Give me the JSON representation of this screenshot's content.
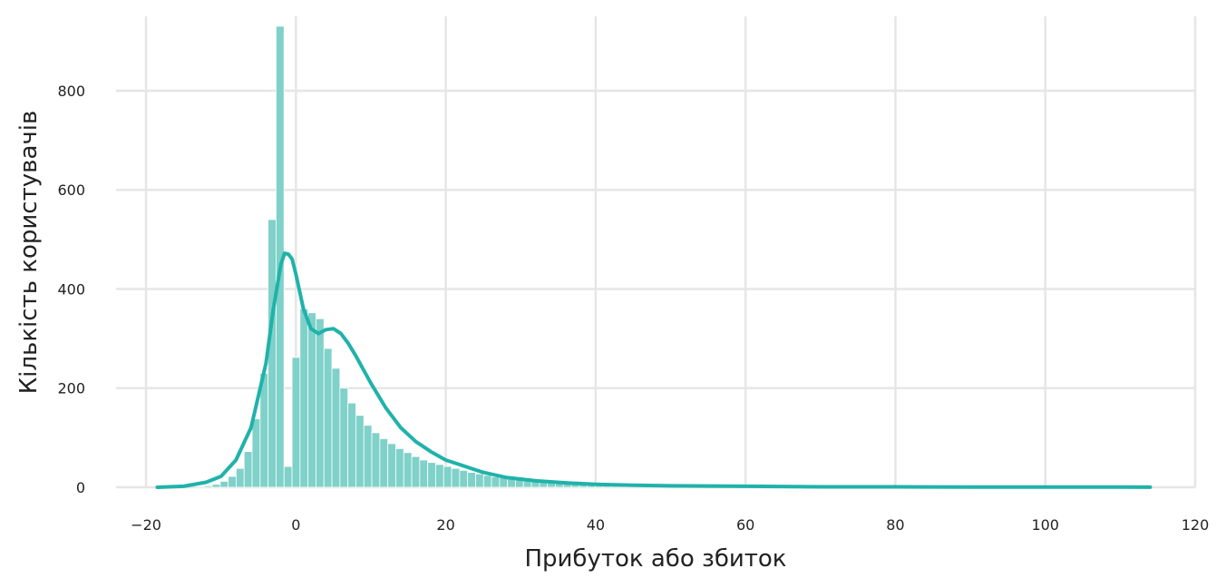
{
  "chart_data": {
    "type": "histogram",
    "xlabel": "Прибуток або збиток",
    "ylabel": "Кількість користувачів",
    "xlim": [
      -24,
      120
    ],
    "ylim": [
      0,
      950
    ],
    "x_ticks": [
      -20,
      0,
      20,
      40,
      60,
      80,
      100,
      120
    ],
    "x_tick_labels": [
      "−20",
      "0",
      "20",
      "40",
      "60",
      "80",
      "100",
      "120"
    ],
    "y_ticks": [
      0,
      200,
      400,
      600,
      800
    ],
    "y_tick_labels": [
      "0",
      "200",
      "400",
      "600",
      "800"
    ],
    "grid": true,
    "colors": {
      "bars": "#7fd1c9",
      "kde": "#20b2aa",
      "grid": "#e6e6e6"
    },
    "bins": {
      "start": -13.3,
      "width": 1.065,
      "counts": [
        2,
        3,
        6,
        12,
        22,
        38,
        72,
        138,
        230,
        540,
        930,
        42,
        262,
        360,
        352,
        340,
        280,
        240,
        200,
        170,
        145,
        125,
        110,
        98,
        88,
        78,
        70,
        62,
        55,
        50,
        46,
        42,
        38,
        34,
        30,
        27,
        24,
        21,
        19,
        17,
        15,
        13,
        12,
        11,
        10,
        9,
        8,
        7,
        6,
        6,
        5,
        5,
        4,
        4,
        3,
        3,
        3,
        2,
        2,
        2,
        2,
        2,
        1,
        1,
        1,
        1
      ]
    },
    "kde": {
      "x": [
        -18.5,
        -15,
        -12,
        -10,
        -8,
        -6,
        -4,
        -3,
        -2,
        -1.5,
        -1,
        -0.5,
        0,
        1,
        2,
        3,
        4,
        5,
        6,
        7,
        8,
        10,
        12,
        14,
        16,
        18,
        20,
        22,
        25,
        28,
        32,
        36,
        40,
        45,
        50,
        60,
        70,
        80,
        90,
        100,
        110,
        114
      ],
      "y": [
        0,
        2,
        10,
        22,
        55,
        120,
        250,
        360,
        450,
        472,
        470,
        460,
        430,
        360,
        320,
        310,
        318,
        320,
        310,
        290,
        265,
        210,
        160,
        120,
        92,
        72,
        55,
        45,
        30,
        20,
        13,
        9,
        6,
        4,
        3,
        2,
        1,
        1,
        0.5,
        0.5,
        0.3,
        0.2
      ]
    }
  }
}
